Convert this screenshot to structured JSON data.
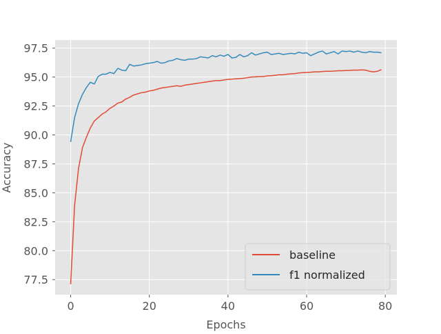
{
  "chart_data": {
    "type": "line",
    "title": "",
    "xlabel": "Epochs",
    "ylabel": "Accuracy",
    "xlim": [
      -3.95,
      82.95
    ],
    "ylim": [
      76.2,
      98.2
    ],
    "xticks": [
      0,
      20,
      40,
      60,
      80
    ],
    "yticks": [
      77.5,
      80.0,
      82.5,
      85.0,
      87.5,
      90.0,
      92.5,
      95.0,
      97.5
    ],
    "xtick_labels": [
      "0",
      "20",
      "40",
      "60",
      "80"
    ],
    "ytick_labels": [
      "77.5",
      "80.0",
      "82.5",
      "85.0",
      "87.5",
      "90.0",
      "92.5",
      "95.0",
      "97.5"
    ],
    "grid": true,
    "legend_position": "lower-right",
    "style": "ggplot",
    "series": [
      {
        "name": "baseline",
        "color": "#E24A33",
        "x": [
          0,
          1,
          2,
          3,
          4,
          5,
          6,
          7,
          8,
          9,
          10,
          11,
          12,
          13,
          14,
          15,
          16,
          17,
          18,
          19,
          20,
          21,
          22,
          23,
          24,
          25,
          26,
          27,
          28,
          29,
          30,
          31,
          32,
          33,
          34,
          35,
          36,
          37,
          38,
          39,
          40,
          41,
          42,
          43,
          44,
          45,
          46,
          47,
          48,
          49,
          50,
          51,
          52,
          53,
          54,
          55,
          56,
          57,
          58,
          59,
          60,
          61,
          62,
          63,
          64,
          65,
          66,
          67,
          68,
          69,
          70,
          71,
          72,
          73,
          74,
          75,
          76,
          77,
          78,
          79
        ],
        "values": [
          77.1,
          83.9,
          87.1,
          88.9,
          89.8,
          90.6,
          91.2,
          91.5,
          91.8,
          92.0,
          92.3,
          92.5,
          92.75,
          92.85,
          93.1,
          93.25,
          93.45,
          93.55,
          93.65,
          93.7,
          93.8,
          93.85,
          93.95,
          94.05,
          94.1,
          94.15,
          94.2,
          94.25,
          94.2,
          94.3,
          94.35,
          94.4,
          94.45,
          94.5,
          94.55,
          94.6,
          94.65,
          94.7,
          94.7,
          94.75,
          94.8,
          94.82,
          94.85,
          94.87,
          94.9,
          94.95,
          95.0,
          95.02,
          95.05,
          95.05,
          95.1,
          95.12,
          95.15,
          95.2,
          95.2,
          95.25,
          95.28,
          95.3,
          95.35,
          95.38,
          95.4,
          95.42,
          95.45,
          95.45,
          95.48,
          95.5,
          95.5,
          95.52,
          95.55,
          95.55,
          95.57,
          95.58,
          95.6,
          95.6,
          95.62,
          95.6,
          95.5,
          95.45,
          95.5,
          95.65
        ]
      },
      {
        "name": "f1 normalized",
        "color": "#348ABD",
        "x": [
          0,
          1,
          2,
          3,
          4,
          5,
          6,
          7,
          8,
          9,
          10,
          11,
          12,
          13,
          14,
          15,
          16,
          17,
          18,
          19,
          20,
          21,
          22,
          23,
          24,
          25,
          26,
          27,
          28,
          29,
          30,
          31,
          32,
          33,
          34,
          35,
          36,
          37,
          38,
          39,
          40,
          41,
          42,
          43,
          44,
          45,
          46,
          47,
          48,
          49,
          50,
          51,
          52,
          53,
          54,
          55,
          56,
          57,
          58,
          59,
          60,
          61,
          62,
          63,
          64,
          65,
          66,
          67,
          68,
          69,
          70,
          71,
          72,
          73,
          74,
          75,
          76,
          77,
          78,
          79
        ],
        "values": [
          89.4,
          91.5,
          92.7,
          93.5,
          94.1,
          94.55,
          94.4,
          95.05,
          95.25,
          95.25,
          95.4,
          95.3,
          95.75,
          95.6,
          95.55,
          96.1,
          95.95,
          96.0,
          96.05,
          96.15,
          96.2,
          96.25,
          96.35,
          96.2,
          96.25,
          96.4,
          96.45,
          96.6,
          96.5,
          96.45,
          96.55,
          96.55,
          96.6,
          96.75,
          96.7,
          96.65,
          96.85,
          96.75,
          96.9,
          96.8,
          96.95,
          96.65,
          96.7,
          96.95,
          96.75,
          96.85,
          97.1,
          96.9,
          97.0,
          97.1,
          97.15,
          96.95,
          97.0,
          97.05,
          96.95,
          97.0,
          97.05,
          97.0,
          97.15,
          97.05,
          97.1,
          96.85,
          97.0,
          97.15,
          97.25,
          97.0,
          97.1,
          97.2,
          97.0,
          97.25,
          97.2,
          97.25,
          97.15,
          97.25,
          97.15,
          97.1,
          97.2,
          97.15,
          97.15,
          97.1
        ]
      }
    ]
  }
}
